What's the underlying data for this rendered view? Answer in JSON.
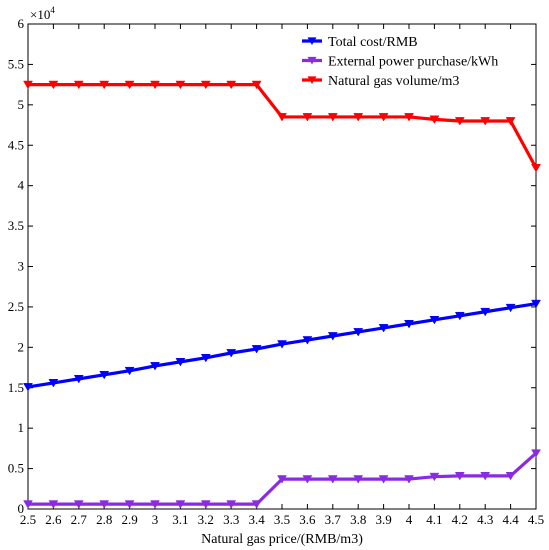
{
  "chart_data": {
    "type": "line",
    "xlabel": "Natural gas price/(RMB/m3)",
    "ylabel": "",
    "y_multiplier_label": "×10^4",
    "y_multiplier_base": "×10",
    "y_multiplier_exp": "4",
    "xlim": [
      2.5,
      4.5
    ],
    "ylim": [
      0,
      60000
    ],
    "x": [
      2.5,
      2.6,
      2.7,
      2.8,
      2.9,
      3.0,
      3.1,
      3.2,
      3.3,
      3.4,
      3.5,
      3.6,
      3.7,
      3.8,
      3.9,
      4.0,
      4.1,
      4.2,
      4.3,
      4.4,
      4.5
    ],
    "x_tick_labels": [
      "2.5",
      "2.6",
      "2.7",
      "2.8",
      "2.9",
      "3",
      "3.1",
      "3.2",
      "3.3",
      "3.4",
      "3.5",
      "3.6",
      "3.7",
      "3.8",
      "3.9",
      "4",
      "4.1",
      "4.2",
      "4.3",
      "4.4",
      "4.5"
    ],
    "y_ticks": [
      0,
      5000,
      10000,
      15000,
      20000,
      25000,
      30000,
      35000,
      40000,
      45000,
      50000,
      55000,
      60000
    ],
    "y_tick_labels": [
      "0",
      "0.5",
      "1",
      "1.5",
      "2",
      "2.5",
      "3",
      "3.5",
      "4",
      "4.5",
      "5",
      "5.5",
      "6"
    ],
    "grid": false,
    "legend_position": "top-right",
    "series": [
      {
        "name": "Total cost/RMB",
        "color": "#0000ff",
        "marker": "triangle-down",
        "values": [
          15100,
          15600,
          16100,
          16600,
          17100,
          17700,
          18200,
          18700,
          19300,
          19800,
          20400,
          20900,
          21400,
          21900,
          22400,
          22900,
          23400,
          23900,
          24400,
          24900,
          25400
        ]
      },
      {
        "name": "External power purchase/kWh",
        "color": "#8a2be2",
        "marker": "triangle-down",
        "values": [
          600,
          600,
          600,
          600,
          600,
          600,
          600,
          600,
          600,
          600,
          3700,
          3700,
          3700,
          3700,
          3700,
          3700,
          4000,
          4100,
          4100,
          4100,
          6900
        ]
      },
      {
        "name": "Natural gas volume/m3",
        "color": "#ff0000",
        "marker": "triangle-down",
        "values": [
          52500,
          52500,
          52500,
          52500,
          52500,
          52500,
          52500,
          52500,
          52500,
          52500,
          48500,
          48500,
          48500,
          48500,
          48500,
          48500,
          48200,
          48000,
          48000,
          48000,
          42200
        ]
      }
    ]
  }
}
